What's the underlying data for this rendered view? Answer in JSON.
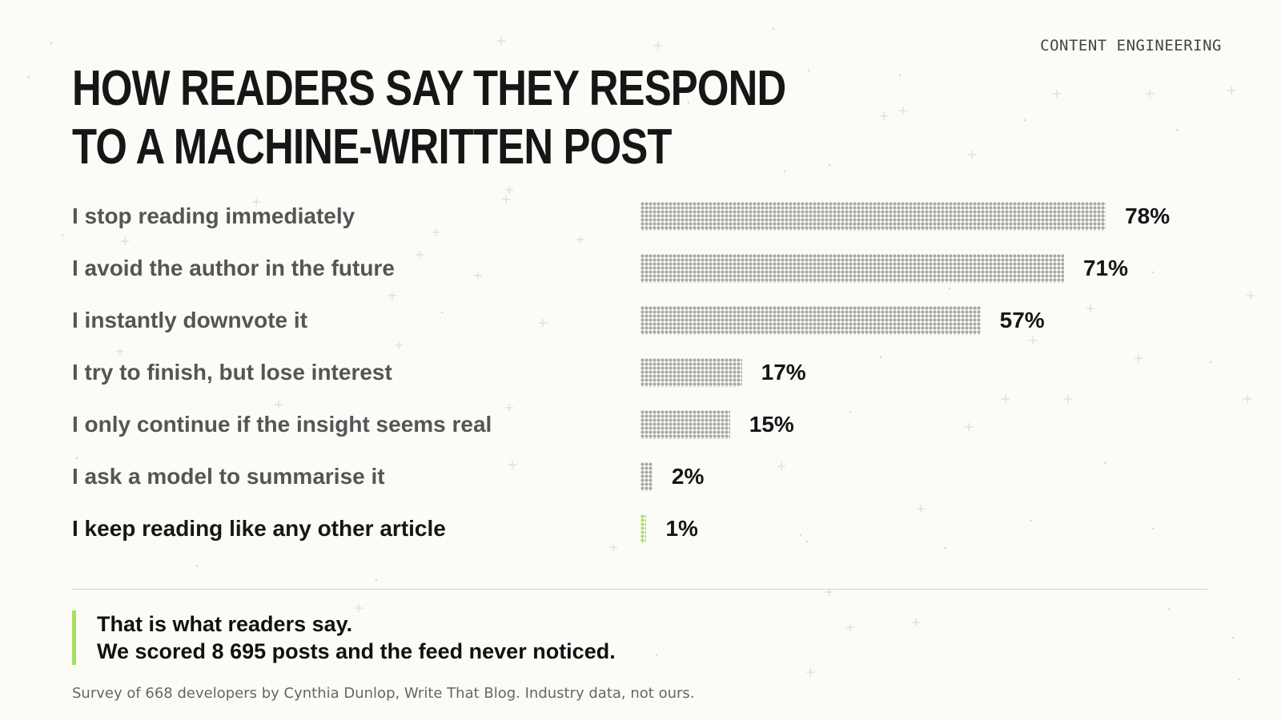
{
  "header": {
    "tag": "CONTENT ENGINEERING",
    "title_lines": [
      "HOW READERS SAY THEY RESPOND",
      "TO A MACHINE-WRITTEN POST"
    ]
  },
  "colors": {
    "bar": "#a7a7a4",
    "highlight": "#a6e05c",
    "background": "#fcfbf7"
  },
  "chart_data": {
    "type": "bar",
    "orientation": "horizontal",
    "title": "HOW READERS SAY THEY RESPOND TO A MACHINE-WRITTEN POST",
    "categories": [
      "I stop reading immediately",
      "I avoid the author in the future",
      "I instantly downvote it",
      "I try to finish, but lose interest",
      "I only continue if the insight seems real",
      "I ask a model to summarise it",
      "I keep reading like any other article"
    ],
    "values": [
      78,
      71,
      57,
      17,
      15,
      2,
      1
    ],
    "value_labels": [
      "78%",
      "71%",
      "57%",
      "17%",
      "15%",
      "2%",
      "1%"
    ],
    "highlighted_category": "I keep reading like any other article",
    "xlim": [
      0,
      100
    ],
    "grid": false,
    "legend": "none"
  },
  "callout": {
    "line1": "That is what readers say.",
    "line2": "We scored 8 695 posts and the feed never noticed."
  },
  "footnote": "Survey of 668 developers by Cynthia Dunlop, Write That Blog. Industry data, not ours."
}
